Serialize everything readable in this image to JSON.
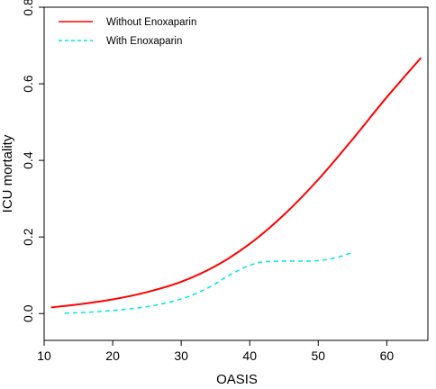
{
  "chart_data": {
    "type": "line",
    "title": "",
    "xlabel": "OASIS",
    "ylabel": "ICU mortality",
    "xlim": [
      10,
      66
    ],
    "ylim": [
      -0.07,
      0.8
    ],
    "xticks": [
      10,
      20,
      30,
      40,
      50,
      60
    ],
    "yticks": [
      0.0,
      0.2,
      0.4,
      0.6,
      0.8
    ],
    "xtick_labels": [
      "10",
      "20",
      "30",
      "40",
      "50",
      "60"
    ],
    "ytick_labels": [
      "0.0",
      "0.2",
      "0.4",
      "0.6",
      "0.8"
    ],
    "grid": false,
    "legend_position": "top-left",
    "series": [
      {
        "name": "Without Enoxaparin",
        "color": "#ff0000",
        "line_style": "solid",
        "x": [
          11,
          15,
          20,
          25,
          30,
          35,
          40,
          45,
          50,
          55,
          60,
          65
        ],
        "y": [
          0.016,
          0.024,
          0.037,
          0.056,
          0.083,
          0.124,
          0.182,
          0.258,
          0.35,
          0.455,
          0.565,
          0.668
        ]
      },
      {
        "name": "With Enoxaparin",
        "color": "#00e5ee",
        "line_style": "dashed",
        "x": [
          13,
          16,
          20,
          25,
          30,
          34,
          37,
          40,
          42,
          45,
          50,
          53,
          55
        ],
        "y": [
          0.001,
          0.003,
          0.008,
          0.018,
          0.038,
          0.068,
          0.1,
          0.126,
          0.135,
          0.137,
          0.138,
          0.148,
          0.16
        ]
      }
    ]
  }
}
